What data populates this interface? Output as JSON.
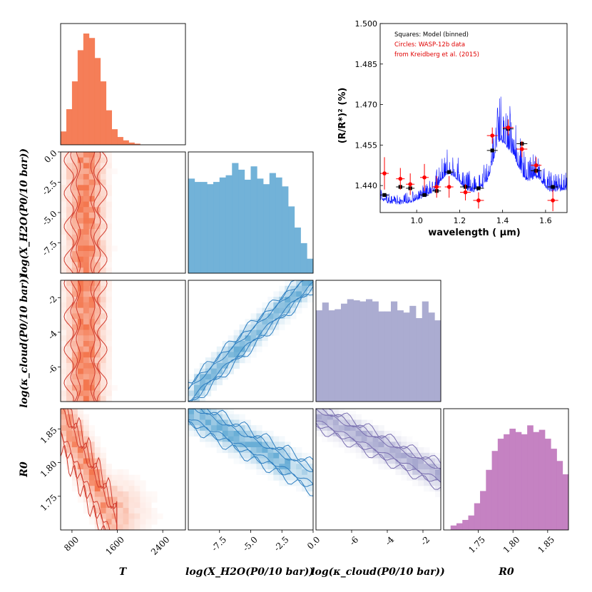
{
  "colors": {
    "T": "#f4774f",
    "water": "#6aaed6",
    "cloud": "#a7a8cf",
    "R0": "#c27bbf",
    "T_line": "#d13b2d",
    "water_line": "#2f7fc1",
    "cloud_line": "#7a6fb0",
    "model": "#0a14ff",
    "data": "#ff0000",
    "binned": "#000000"
  },
  "labels": {
    "T": "T",
    "water": "log(X_H2O(P0/10 bar))",
    "cloud": "log(κ_cloud(P0/10 bar))",
    "R0": "R0",
    "spec_y": "(R/R*)² (%)",
    "spec_x": "wavelength ( μm)"
  },
  "legend": {
    "line1": "Squares: Model (binned)",
    "line2": "Circles: WASP-12b data",
    "line3": "from Kreidberg et al. (2015)"
  },
  "chart_data": [
    {
      "type": "bar",
      "name": "T-posterior-histogram",
      "xlabel": "T",
      "xlim": [
        600,
        2800
      ],
      "xticks": [
        800,
        1600,
        2400
      ],
      "bin_start": 600,
      "bin_width": 100,
      "values": [
        0.12,
        0.32,
        0.57,
        0.85,
        1.0,
        0.96,
        0.78,
        0.57,
        0.31,
        0.14,
        0.07,
        0.04,
        0.02,
        0.01,
        0.0,
        0.0
      ]
    },
    {
      "type": "bar",
      "name": "water-posterior-histogram",
      "xlabel": "log(X_H2O(P0/10 bar))",
      "xlim": [
        -10.0,
        0.0
      ],
      "xticks": [
        -7.5,
        -5.0,
        -2.5,
        0.0
      ],
      "bin_start": -10.0,
      "bin_width": 0.5,
      "values": [
        0.85,
        0.82,
        0.82,
        0.8,
        0.82,
        0.86,
        0.88,
        0.99,
        0.93,
        0.84,
        0.96,
        0.85,
        0.8,
        0.9,
        0.86,
        0.78,
        0.6,
        0.41,
        0.27,
        0.13
      ]
    },
    {
      "type": "bar",
      "name": "cloud-posterior-histogram",
      "xlabel": "log(κ_cloud(P0/10 bar))",
      "xlim": [
        -8.0,
        -1.0
      ],
      "xticks": [
        -6,
        -4,
        -2
      ],
      "bin_start": -8.0,
      "bin_width": 0.35,
      "values": [
        0.82,
        0.89,
        0.82,
        0.83,
        0.88,
        0.92,
        0.91,
        0.9,
        0.92,
        0.9,
        0.81,
        0.81,
        0.9,
        0.82,
        0.8,
        0.86,
        0.75,
        0.9,
        0.8,
        0.73
      ]
    },
    {
      "type": "bar",
      "name": "R0-posterior-histogram",
      "xlabel": "R0",
      "xlim": [
        1.7,
        1.88
      ],
      "xticks": [
        1.75,
        1.8,
        1.85
      ],
      "bin_start": 1.71,
      "bin_width": 0.0085,
      "values": [
        0.04,
        0.06,
        0.09,
        0.13,
        0.24,
        0.35,
        0.54,
        0.71,
        0.82,
        0.86,
        0.91,
        0.88,
        0.86,
        0.94,
        0.88,
        0.9,
        0.82,
        0.73,
        0.62,
        0.5
      ]
    },
    {
      "type": "heatmap",
      "name": "T-vs-water",
      "xlim": [
        600,
        2800
      ],
      "ylim": [
        -10.0,
        0.0
      ],
      "yticks": [
        -7.5,
        -5.0,
        -2.5,
        0.0
      ],
      "correlation": "none",
      "x_center": 1200,
      "x_spread": 250
    },
    {
      "type": "heatmap",
      "name": "T-vs-cloud",
      "xlim": [
        600,
        2800
      ],
      "ylim": [
        -8.0,
        -1.0
      ],
      "yticks": [
        -6,
        -4,
        -2
      ],
      "correlation": "none",
      "x_center": 1200,
      "x_spread": 250
    },
    {
      "type": "heatmap",
      "name": "T-vs-R0",
      "xlim": [
        600,
        2800
      ],
      "ylim": [
        1.7,
        1.88
      ],
      "yticks": [
        1.75,
        1.8,
        1.85
      ],
      "xticks": [
        800,
        1600,
        2400
      ],
      "correlation": "negative"
    },
    {
      "type": "heatmap",
      "name": "water-vs-cloud",
      "xlim": [
        -10.0,
        0.0
      ],
      "ylim": [
        -8.0,
        -1.0
      ],
      "correlation": "strong-positive"
    },
    {
      "type": "heatmap",
      "name": "water-vs-R0",
      "xlim": [
        -10.0,
        0.0
      ],
      "ylim": [
        1.7,
        1.88
      ],
      "xticks": [
        -7.5,
        -5.0,
        -2.5,
        0.0
      ],
      "correlation": "strong-negative"
    },
    {
      "type": "heatmap",
      "name": "cloud-vs-R0",
      "xlim": [
        -8.0,
        -1.0
      ],
      "ylim": [
        1.7,
        1.88
      ],
      "xticks": [
        -6,
        -4,
        -2
      ],
      "correlation": "strong-negative"
    },
    {
      "type": "line",
      "name": "transmission-spectrum",
      "xlabel": "wavelength ( μm)",
      "ylabel": "(R/R*)² (%)",
      "xlim": [
        0.83,
        1.7
      ],
      "ylim": [
        1.43,
        1.5
      ],
      "xticks": [
        1.0,
        1.2,
        1.4,
        1.6
      ],
      "yticks": [
        1.44,
        1.455,
        1.47,
        1.485,
        1.5
      ],
      "data_points": [
        {
          "x": 0.85,
          "y": 1.4445,
          "xerr": 0.02,
          "yerr": 0.006
        },
        {
          "x": 0.924,
          "y": 1.4425,
          "xerr": 0.02,
          "yerr": 0.004
        },
        {
          "x": 0.97,
          "y": 1.4405,
          "xerr": 0.02,
          "yerr": 0.004
        },
        {
          "x": 1.036,
          "y": 1.443,
          "xerr": 0.02,
          "yerr": 0.005
        },
        {
          "x": 1.093,
          "y": 1.4395,
          "xerr": 0.02,
          "yerr": 0.004
        },
        {
          "x": 1.151,
          "y": 1.4395,
          "xerr": 0.02,
          "yerr": 0.004
        },
        {
          "x": 1.227,
          "y": 1.4375,
          "xerr": 0.025,
          "yerr": 0.003
        },
        {
          "x": 1.288,
          "y": 1.4345,
          "xerr": 0.025,
          "yerr": 0.003
        },
        {
          "x": 1.352,
          "y": 1.4585,
          "xerr": 0.025,
          "yerr": 0.003
        },
        {
          "x": 1.426,
          "y": 1.4615,
          "xerr": 0.025,
          "yerr": 0.003
        },
        {
          "x": 1.49,
          "y": 1.4535,
          "xerr": 0.025,
          "yerr": 0.003
        },
        {
          "x": 1.556,
          "y": 1.4475,
          "xerr": 0.025,
          "yerr": 0.003
        },
        {
          "x": 1.634,
          "y": 1.4345,
          "xerr": 0.025,
          "yerr": 0.004
        }
      ],
      "binned_model": [
        {
          "x": 0.85,
          "y": 1.4365
        },
        {
          "x": 0.924,
          "y": 1.4395
        },
        {
          "x": 0.97,
          "y": 1.439
        },
        {
          "x": 1.036,
          "y": 1.4365
        },
        {
          "x": 1.093,
          "y": 1.438
        },
        {
          "x": 1.151,
          "y": 1.445
        },
        {
          "x": 1.227,
          "y": 1.4395
        },
        {
          "x": 1.288,
          "y": 1.439
        },
        {
          "x": 1.352,
          "y": 1.453
        },
        {
          "x": 1.426,
          "y": 1.461
        },
        {
          "x": 1.49,
          "y": 1.4555
        },
        {
          "x": 1.556,
          "y": 1.4455
        },
        {
          "x": 1.634,
          "y": 1.4395
        }
      ]
    }
  ]
}
